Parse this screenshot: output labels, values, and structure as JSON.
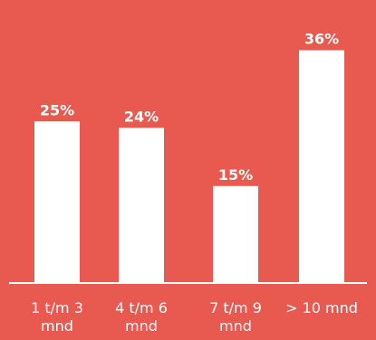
{
  "chart_data": {
    "type": "bar",
    "categories": [
      [
        "1 t/m 3",
        "mnd"
      ],
      [
        "4 t/m 6",
        "mnd"
      ],
      [
        "7 t/m 9",
        "mnd"
      ],
      [
        "> 10 mnd"
      ]
    ],
    "values": [
      25,
      24,
      15,
      36
    ],
    "value_labels": [
      "25%",
      "24%",
      "15%",
      "36%"
    ],
    "ylim": [
      0,
      40
    ],
    "grid": false,
    "legend": "none",
    "colors": {
      "background": "#E85A4F",
      "bar": "#FFFFFF",
      "axis": "#FFFFFF",
      "text": "#FFFFFF"
    }
  }
}
